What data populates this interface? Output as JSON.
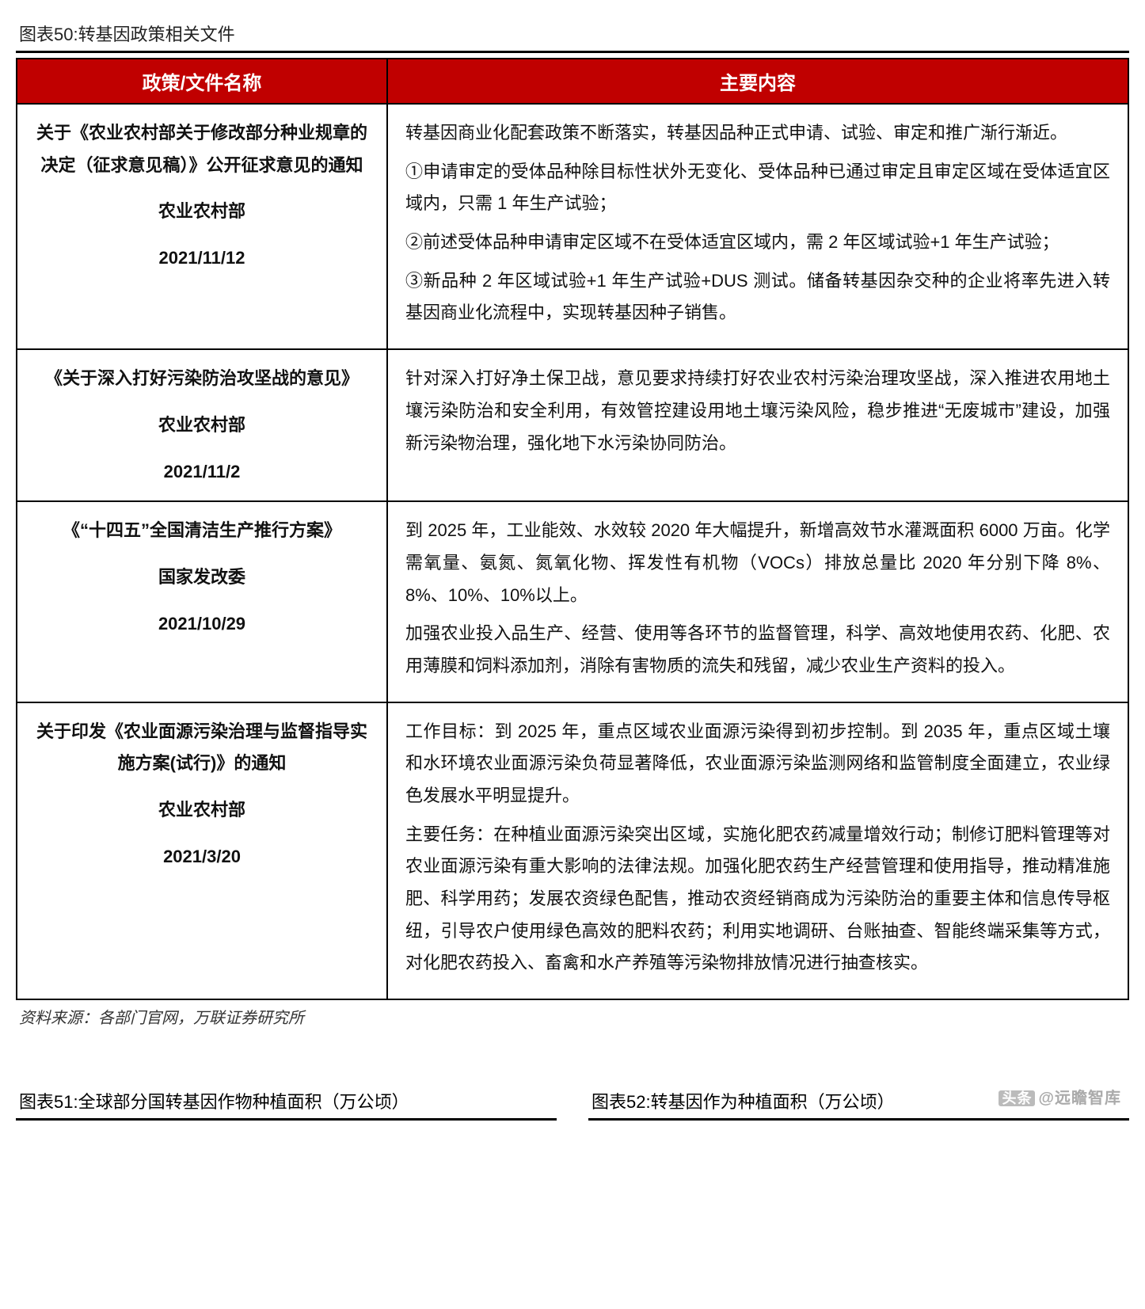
{
  "figure_title": "图表50:转基因政策相关文件",
  "columns": {
    "left": "政策/文件名称",
    "right": "主要内容"
  },
  "rows": [
    {
      "title": "关于《农业农村部关于修改部分种业规章的决定（征求意见稿）》公开征求意见的通知",
      "dept": "农业农村部",
      "date": "2021/11/12",
      "body": [
        "转基因商业化配套政策不断落实，转基因品种正式申请、试验、审定和推广渐行渐近。",
        "①申请审定的受体品种除目标性状外无变化、受体品种已通过审定且审定区域在受体适宜区域内，只需 1 年生产试验；",
        "②前述受体品种申请审定区域不在受体适宜区域内，需 2 年区域试验+1 年生产试验；",
        "③新品种 2 年区域试验+1 年生产试验+DUS 测试。储备转基因杂交种的企业将率先进入转基因商业化流程中，实现转基因种子销售。"
      ]
    },
    {
      "title": "《关于深入打好污染防治攻坚战的意见》",
      "dept": "农业农村部",
      "date": "2021/11/2",
      "body": [
        "针对深入打好净土保卫战，意见要求持续打好农业农村污染治理攻坚战，深入推进农用地土壤污染防治和安全利用，有效管控建设用地土壤污染风险，稳步推进“无废城市”建设，加强新污染物治理，强化地下水污染协同防治。"
      ]
    },
    {
      "title": "《“十四五”全国清洁生产推行方案》",
      "dept": "国家发改委",
      "date": "2021/10/29",
      "body": [
        "到 2025 年，工业能效、水效较 2020 年大幅提升，新增高效节水灌溉面积 6000 万亩。化学需氧量、氨氮、氮氧化物、挥发性有机物（VOCs）排放总量比 2020 年分别下降 8%、8%、10%、10%以上。",
        "加强农业投入品生产、经营、使用等各环节的监督管理，科学、高效地使用农药、化肥、农用薄膜和饲料添加剂，消除有害物质的流失和残留，减少农业生产资料的投入。"
      ]
    },
    {
      "title": "关于印发《农业面源污染治理与监督指导实施方案(试行)》的通知",
      "dept": "农业农村部",
      "date": "2021/3/20",
      "body": [
        "工作目标：到 2025 年，重点区域农业面源污染得到初步控制。到 2035 年，重点区域土壤和水环境农业面源污染负荷显著降低，农业面源污染监测网络和监管制度全面建立，农业绿色发展水平明显提升。",
        "主要任务：在种植业面源污染突出区域，实施化肥农药减量增效行动；制修订肥料管理等对农业面源污染有重大影响的法律法规。加强化肥农药生产经营管理和使用指导，推动精准施肥、科学用药；发展农资绿色配售，推动农资经销商成为污染防治的重要主体和信息传导枢纽，引导农户使用绿色高效的肥料农药；利用实地调研、台账抽查、智能终端采集等方式，对化肥农药投入、畜禽和水产养殖等污染物排放情况进行抽查核实。"
      ]
    }
  ],
  "source": "资料来源：各部门官网，万联证券研究所",
  "figure51": "图表51:全球部分国转基因作物种植面积（万公顷）",
  "figure52": "图表52:转基因作为种植面积（万公顷）",
  "watermark_prefix": "头条",
  "watermark_text": "@远瞻智库",
  "style": {
    "header_bg": "#c00000",
    "header_fg": "#ffffff",
    "border_color": "#000000",
    "font_size_pt": 22,
    "line_height": 1.85
  }
}
